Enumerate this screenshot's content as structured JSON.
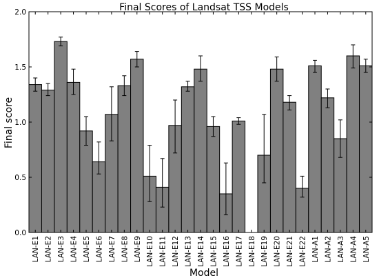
{
  "chart_data": {
    "type": "bar",
    "title": "Final Scores of Landsat TSS Models",
    "xlabel": "Model",
    "ylabel": "Final score",
    "ylim": [
      0,
      2.0
    ],
    "yticks": [
      "0.0",
      "0.5",
      "1.0",
      "1.5",
      "2.0"
    ],
    "categories": [
      "LAN-E1",
      "LAN-E2",
      "LAN-E3",
      "LAN-E4",
      "LAN-E5",
      "LAN-E6",
      "LAN-E7",
      "LAN-E8",
      "LAN-E9",
      "LAN-E10",
      "LAN-E11",
      "LAN-E12",
      "LAN-E13",
      "LAN-E14",
      "LAN-E15",
      "LAN-E16",
      "LAN-E17",
      "LAN-E18",
      "LAN-E19",
      "LAN-E20",
      "LAN-E21",
      "LAN-E22",
      "LAN-A1",
      "LAN-A2",
      "LAN-A3",
      "LAN-A4",
      "LAN-A5"
    ],
    "values": [
      1.34,
      1.29,
      1.73,
      1.36,
      0.92,
      0.64,
      1.07,
      1.33,
      1.57,
      0.51,
      0.41,
      0.97,
      1.32,
      1.48,
      0.96,
      0.35,
      1.01,
      null,
      0.7,
      1.48,
      1.18,
      0.4,
      1.51,
      1.22,
      0.85,
      1.6,
      1.51
    ],
    "error_low": [
      1.28,
      1.24,
      1.69,
      1.25,
      0.79,
      0.53,
      0.83,
      1.24,
      1.5,
      0.28,
      0.23,
      0.72,
      1.28,
      1.37,
      0.87,
      0.16,
      0.98,
      null,
      0.45,
      1.37,
      1.11,
      0.32,
      1.45,
      1.13,
      0.68,
      1.49,
      1.45
    ],
    "error_high": [
      1.4,
      1.35,
      1.77,
      1.48,
      1.05,
      0.82,
      1.32,
      1.42,
      1.64,
      0.79,
      0.67,
      1.2,
      1.37,
      1.6,
      1.05,
      0.63,
      1.04,
      null,
      1.07,
      1.59,
      1.24,
      0.51,
      1.56,
      1.3,
      1.02,
      1.7,
      1.57
    ],
    "bar_color": "#808080",
    "grid": false,
    "legend": null
  }
}
